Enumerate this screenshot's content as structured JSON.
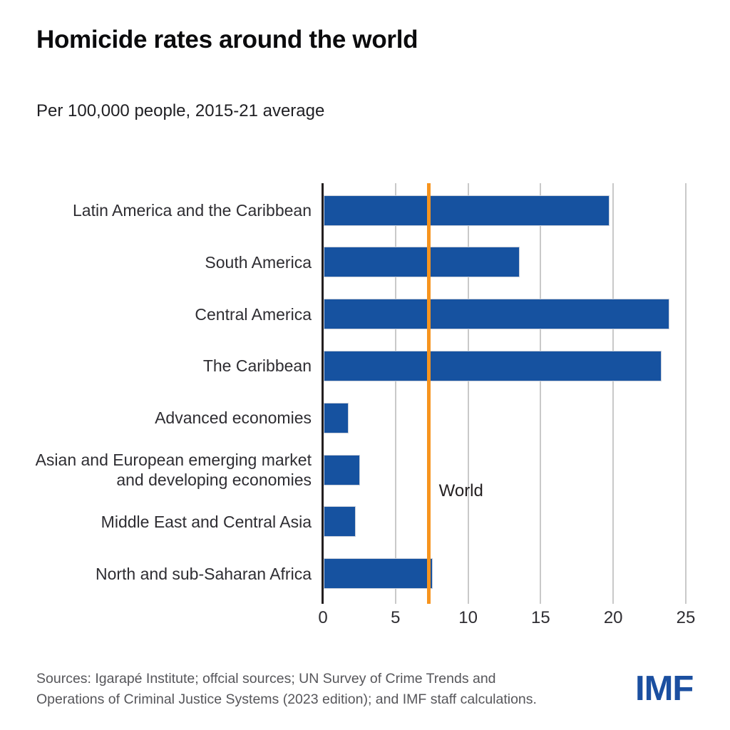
{
  "title": "Homicide rates around the world",
  "subtitle": "Per 100,000 people, 2015-21 average",
  "source_lines": {
    "line1": "Sources: Igarapé Institute; offcial sources; UN Survey of Crime Trends and",
    "line2": "Operations of Criminal Justice Systems (2023 edition); and IMF staff calculations."
  },
  "logo_text": "IMF",
  "colors": {
    "bar": "#1652A0",
    "bar_border": "#C9CFDA",
    "reference_line": "#F7941E",
    "gridline": "#C9C9C9",
    "axis": "#231F20",
    "text": "#2E2D32",
    "source_text": "#56565A",
    "logo": "#1B4FA0"
  },
  "chart_data": {
    "type": "bar",
    "orientation": "horizontal",
    "title": "Homicide rates around the world",
    "subtitle": "Per 100,000 people, 2015-21 average",
    "categories": [
      "Latin America and the Caribbean",
      "South America",
      "Central America",
      "The Caribbean",
      "Advanced economies",
      "Asian and European emerging market\nand developing economies",
      "Middle East and Central Asia",
      "North and sub-Saharan Africa"
    ],
    "values": [
      19.7,
      13.5,
      23.8,
      23.3,
      1.7,
      2.5,
      2.2,
      7.5
    ],
    "xlabel": "",
    "ylabel": "",
    "xlim": [
      0,
      25
    ],
    "xticks": [
      0,
      5,
      10,
      15,
      20,
      25
    ],
    "grid": true,
    "reference_line": {
      "label": "World",
      "value": 7.3
    }
  }
}
